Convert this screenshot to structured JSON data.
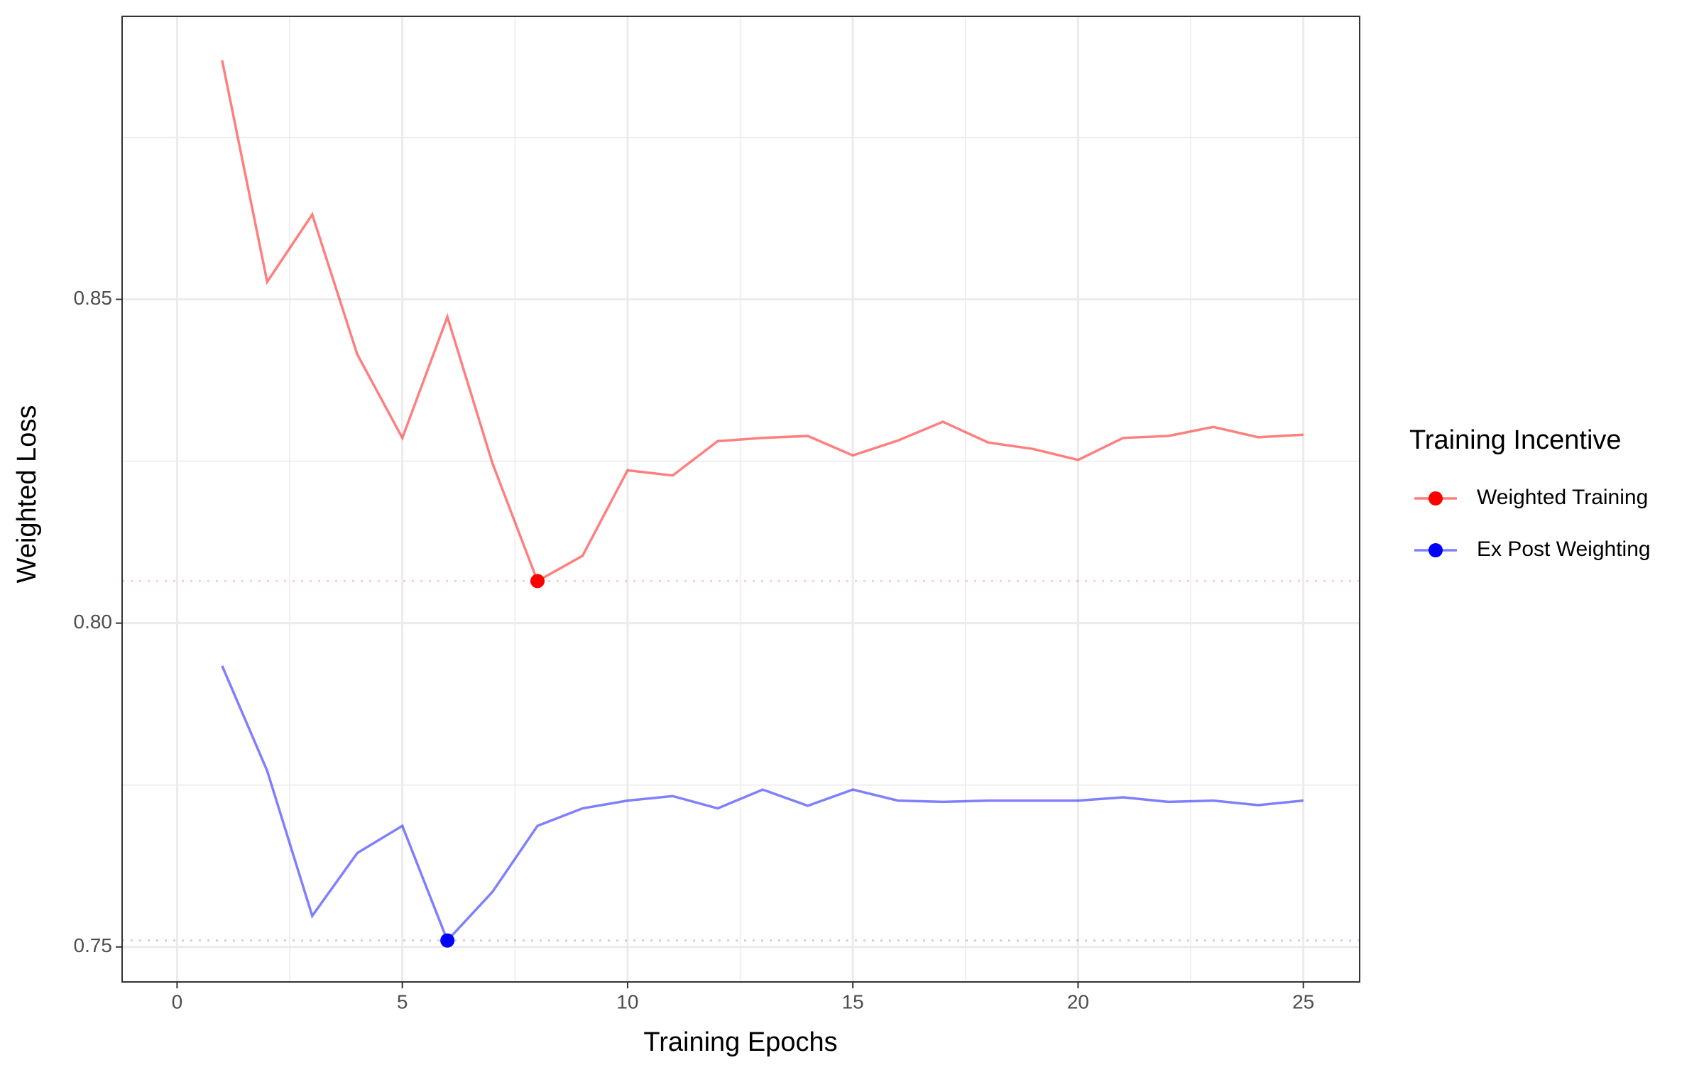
{
  "chart_data": {
    "type": "line",
    "x_label": "Training Epochs",
    "y_label": "Weighted Loss",
    "legend_title": "Training Incentive",
    "legend_position": "right",
    "grid": true,
    "mark_minimum": true,
    "line_alpha": 0.5,
    "reference_alpha": 0.2,
    "xlim": [
      -1.22,
      26.25
    ],
    "ylim": [
      0.7446,
      0.8937
    ],
    "xticks": [
      0,
      5,
      10,
      15,
      20,
      25
    ],
    "yticks": [
      {
        "value": 0.75,
        "label": "0.75"
      },
      {
        "value": 0.8,
        "label": "0.80"
      },
      {
        "value": 0.85,
        "label": "0.85"
      }
    ],
    "minor_xticks": [
      2.5,
      7.5,
      12.5,
      17.5,
      22.5
    ],
    "minor_yticks": [
      0.775,
      0.825,
      0.875
    ],
    "x": [
      1,
      2,
      3,
      4,
      5,
      6,
      7,
      8,
      9,
      10,
      11,
      12,
      13,
      14,
      15,
      16,
      17,
      18,
      19,
      20,
      21,
      22,
      23,
      24,
      25
    ],
    "series": [
      {
        "name": "Weighted Training",
        "color": "#ff0000",
        "values": [
          0.8869,
          0.8527,
          0.8631,
          0.8415,
          0.8286,
          0.8473,
          0.8247,
          0.8065,
          0.8104,
          0.8236,
          0.8228,
          0.8281,
          0.8286,
          0.8289,
          0.8259,
          0.8282,
          0.8311,
          0.8279,
          0.8269,
          0.8252,
          0.8286,
          0.8289,
          0.8303,
          0.8287,
          0.8291
        ]
      },
      {
        "name": "Ex Post Weighting",
        "color": "#0000ff",
        "values": [
          0.7934,
          0.7772,
          0.7548,
          0.7645,
          0.7687,
          0.751,
          0.7585,
          0.7687,
          0.7714,
          0.7726,
          0.7733,
          0.7714,
          0.7743,
          0.7718,
          0.7743,
          0.7726,
          0.7724,
          0.7726,
          0.7726,
          0.7726,
          0.7731,
          0.7724,
          0.7726,
          0.7719,
          0.7726
        ]
      }
    ]
  }
}
